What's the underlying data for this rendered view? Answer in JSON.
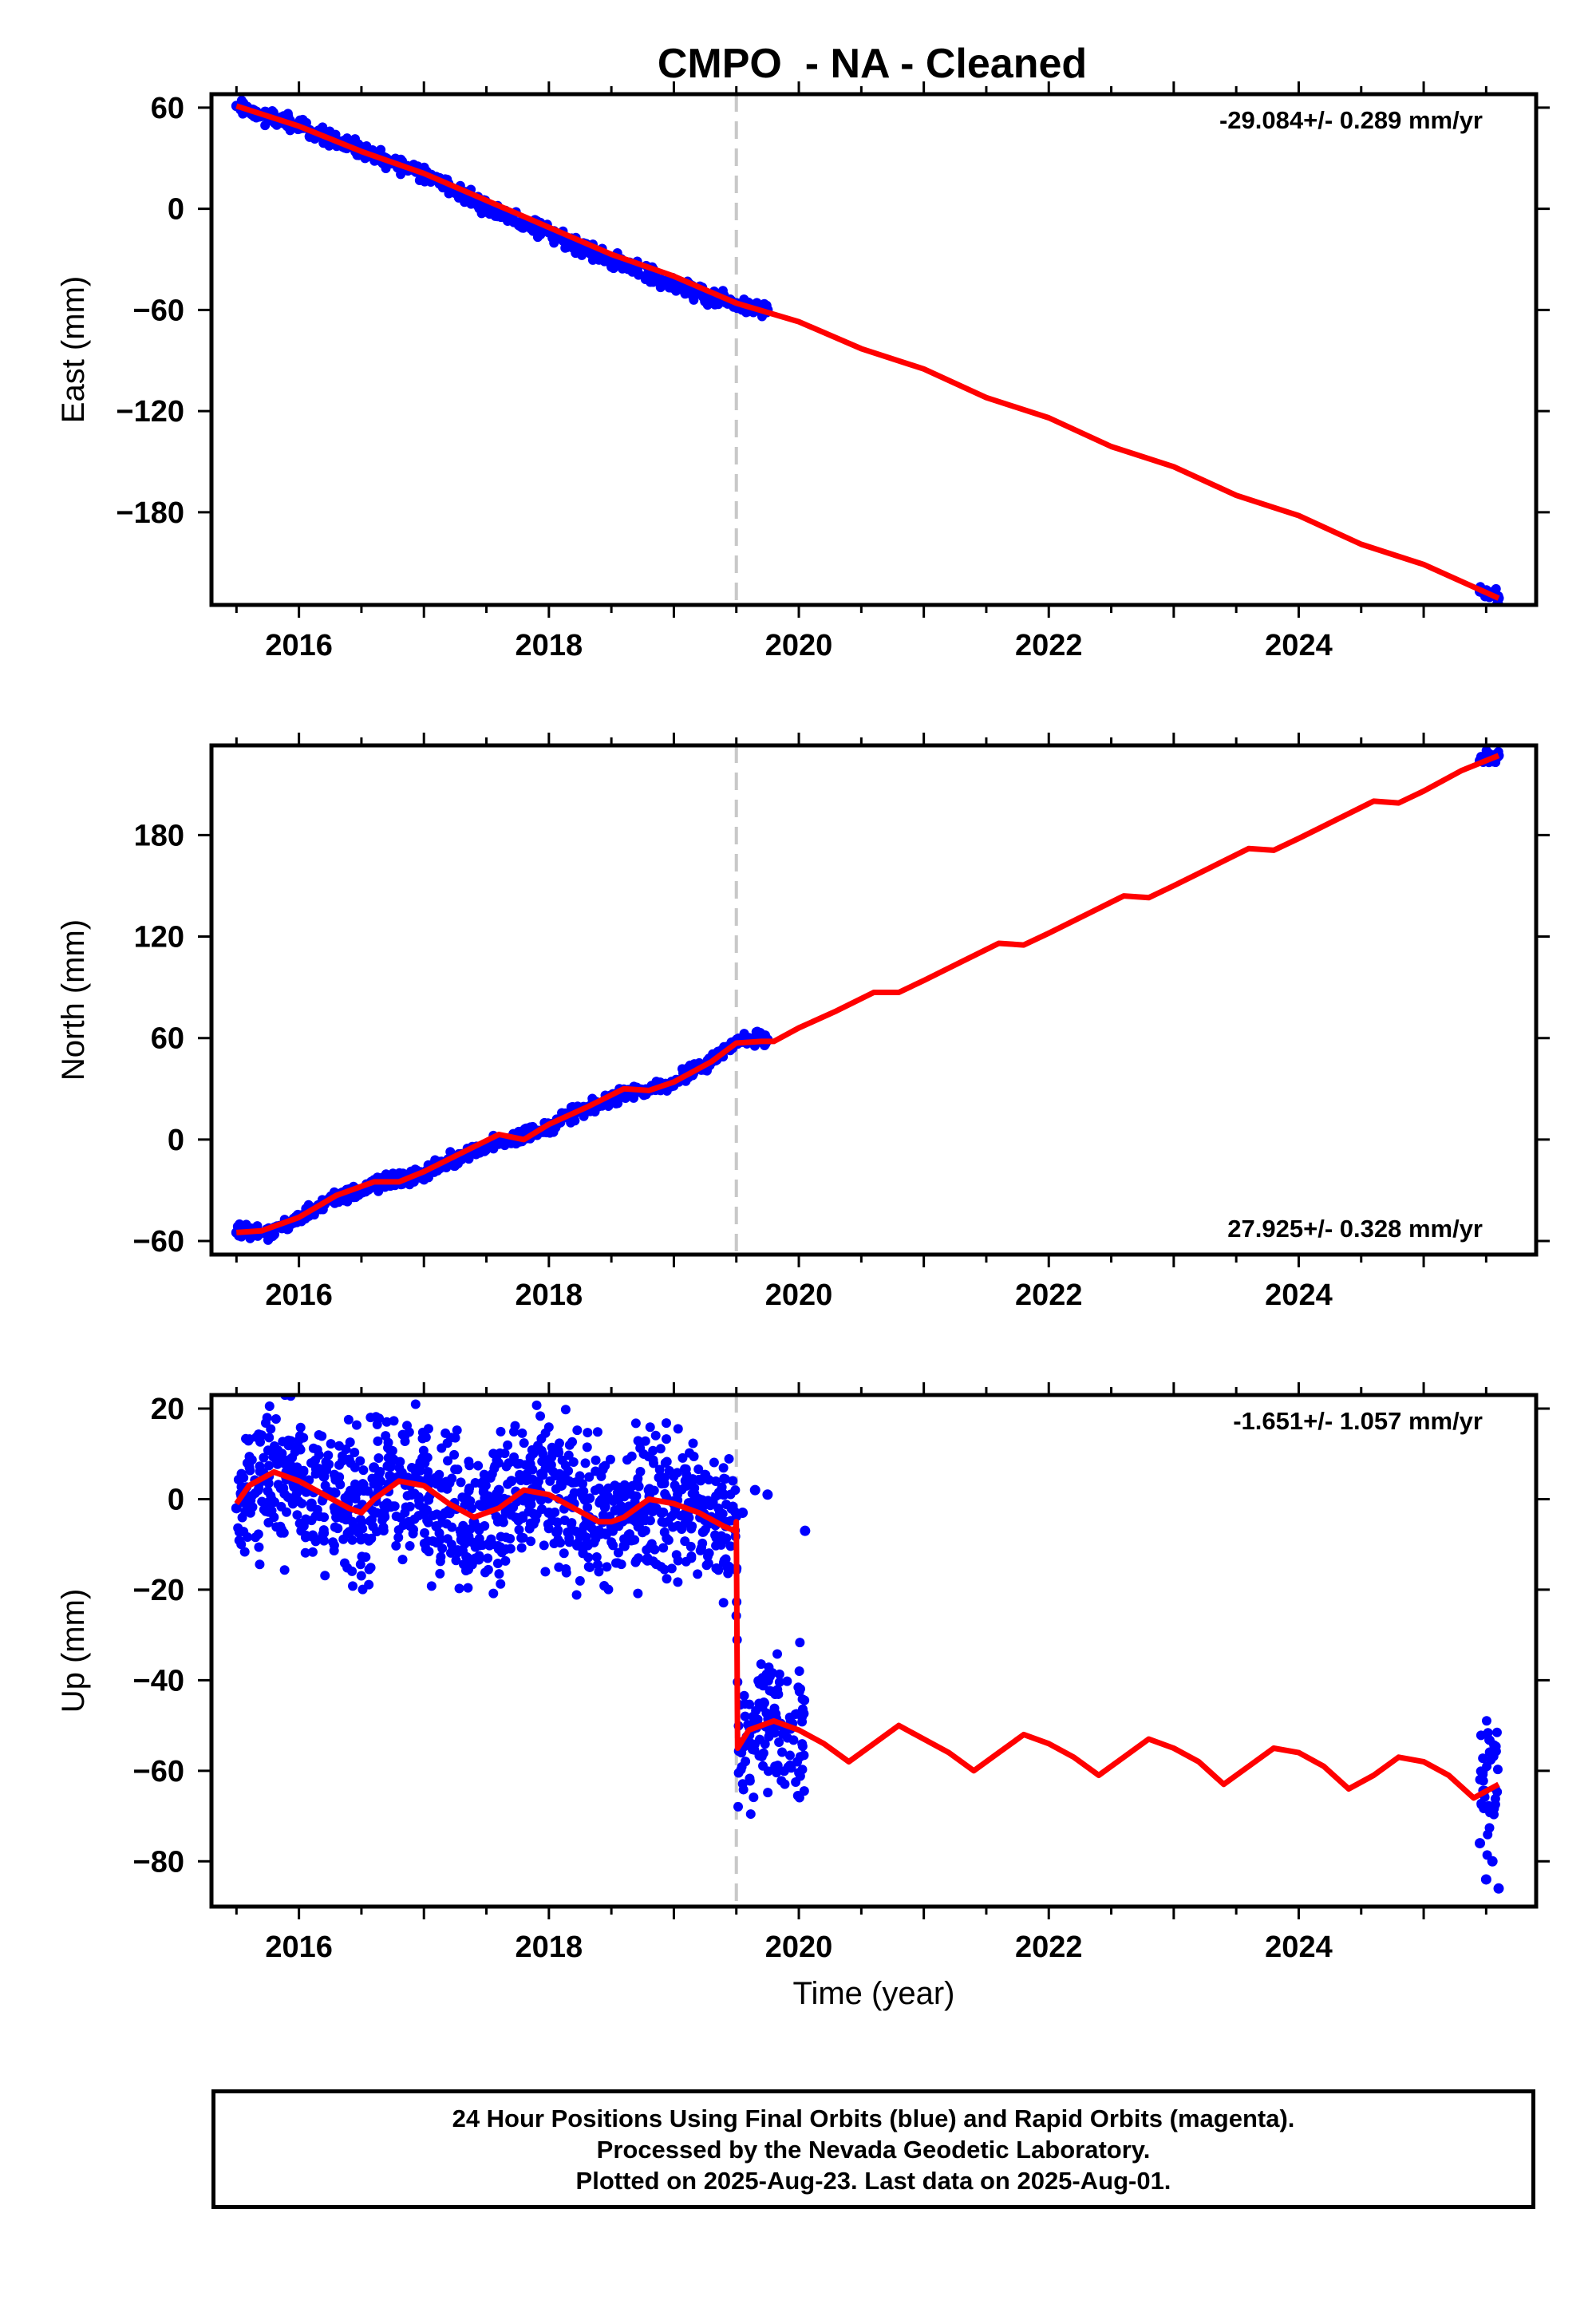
{
  "title": "CMPO  - NA - Cleaned",
  "colors": {
    "data": "#0000ff",
    "model": "#ff0000",
    "offset_line": "#c8c8c8",
    "frame": "#000000"
  },
  "footer": {
    "line1": "24 Hour Positions Using Final Orbits (blue) and Rapid Orbits (magenta).",
    "line2": "Processed by the Nevada Geodetic Laboratory.",
    "line3": "Plotted on 2025-Aug-23. Last data on 2025-Aug-01."
  },
  "chart_data": [
    {
      "type": "scatter",
      "component": "East",
      "ylabel": "East (mm)",
      "xlabel": "",
      "xlim": [
        2015.3,
        2025.9
      ],
      "ylim": [
        -235,
        68
      ],
      "xticks": [
        2016,
        2018,
        2020,
        2022,
        2024
      ],
      "yticks": [
        60,
        0,
        -60,
        -120,
        -180
      ],
      "grid": false,
      "rate_label": "-29.084+/- 0.289 mm/yr",
      "rate_position": "top-right",
      "offset_epoch": 2019.5,
      "series": [
        {
          "role": "daily positions",
          "x": [
            2015.5,
            2015.7,
            2016.0,
            2016.3,
            2016.6,
            2017.0,
            2017.3,
            2017.6,
            2018.0,
            2018.3,
            2018.6,
            2019.0,
            2019.3,
            2019.5,
            2019.6,
            2019.75,
            2025.45,
            2025.5,
            2025.6
          ],
          "y": [
            61,
            55,
            50,
            40,
            32,
            21,
            9,
            -2,
            -14,
            -24,
            -33,
            -45,
            -53,
            -56,
            -59,
            -60,
            -227,
            -229,
            -231
          ]
        },
        {
          "role": "model fit",
          "x": [
            2015.5,
            2016.0,
            2016.5,
            2017.0,
            2017.5,
            2018.0,
            2018.5,
            2019.0,
            2019.5,
            2020.0,
            2020.5,
            2021.0,
            2021.5,
            2022.0,
            2022.5,
            2023.0,
            2023.5,
            2024.0,
            2024.5,
            2025.0,
            2025.6
          ],
          "y": [
            61,
            49,
            34,
            21,
            5,
            -11,
            -27,
            -40,
            -56,
            -67,
            -83,
            -95,
            -112,
            -124,
            -141,
            -153,
            -170,
            -182,
            -199,
            -211,
            -231
          ]
        }
      ]
    },
    {
      "type": "scatter",
      "component": "North",
      "ylabel": "North (mm)",
      "xlabel": "",
      "xlim": [
        2015.3,
        2025.9
      ],
      "ylim": [
        -68,
        233
      ],
      "xticks": [
        2016,
        2018,
        2020,
        2022,
        2024
      ],
      "yticks": [
        180,
        120,
        60,
        0,
        -60
      ],
      "grid": false,
      "rate_label": "27.925+/- 0.328 mm/yr",
      "rate_position": "bottom-right",
      "offset_epoch": 2019.5,
      "series": [
        {
          "role": "daily positions",
          "x": [
            2015.5,
            2015.8,
            2016.0,
            2016.3,
            2016.6,
            2017.0,
            2017.4,
            2017.7,
            2018.0,
            2018.3,
            2018.6,
            2019.0,
            2019.3,
            2019.5,
            2019.6,
            2019.75,
            2025.45,
            2025.55,
            2025.6
          ],
          "y": [
            -55,
            -56,
            -46,
            -35,
            -27,
            -20,
            -7,
            0,
            8,
            18,
            27,
            34,
            47,
            57,
            60,
            59,
            224,
            226,
            227
          ]
        },
        {
          "role": "model fit",
          "x": [
            2015.5,
            2015.7,
            2016.0,
            2016.3,
            2016.6,
            2016.8,
            2017.0,
            2017.3,
            2017.6,
            2017.8,
            2018.0,
            2018.3,
            2018.6,
            2018.8,
            2019.0,
            2019.3,
            2019.5,
            2019.7,
            2019.8,
            2020.0,
            2020.3,
            2020.6,
            2020.8,
            2021.0,
            2021.3,
            2021.6,
            2021.8,
            2022.0,
            2022.3,
            2022.6,
            2022.8,
            2023.0,
            2023.3,
            2023.6,
            2023.8,
            2024.0,
            2024.3,
            2024.6,
            2024.8,
            2025.0,
            2025.3,
            2025.6
          ],
          "y": [
            -55,
            -54,
            -46,
            -33,
            -25,
            -25,
            -19,
            -8,
            3,
            0,
            9,
            19,
            30,
            29,
            34,
            46,
            57,
            58,
            58,
            66,
            76,
            87,
            87,
            94,
            105,
            116,
            115,
            122,
            133,
            144,
            143,
            150,
            161,
            172,
            171,
            178,
            189,
            200,
            199,
            206,
            218,
            227
          ]
        }
      ]
    },
    {
      "type": "scatter",
      "component": "Up",
      "ylabel": "Up (mm)",
      "xlabel": "Time (year)",
      "xlim": [
        2015.3,
        2025.9
      ],
      "ylim": [
        -90,
        23
      ],
      "xticks": [
        2016,
        2018,
        2020,
        2022,
        2024
      ],
      "yticks": [
        20,
        0,
        -20,
        -40,
        -60,
        -80
      ],
      "grid": false,
      "rate_label": "-1.651+/- 1.057 mm/yr",
      "rate_position": "top-right",
      "offset_epoch": 2019.5,
      "series": [
        {
          "role": "daily positions",
          "x": [
            2015.5,
            2015.6,
            2015.7,
            2015.8,
            2015.9,
            2016.0,
            2016.1,
            2016.2,
            2016.3,
            2016.4,
            2016.5,
            2016.6,
            2016.7,
            2016.8,
            2016.9,
            2017.0,
            2017.1,
            2017.2,
            2017.3,
            2017.4,
            2017.5,
            2017.6,
            2017.7,
            2017.8,
            2017.9,
            2018.0,
            2018.1,
            2018.2,
            2018.3,
            2018.4,
            2018.5,
            2018.6,
            2018.7,
            2018.8,
            2018.9,
            2019.0,
            2019.1,
            2019.2,
            2019.3,
            2019.4,
            2019.55,
            2019.65,
            2019.75,
            2020.05,
            2025.45,
            2025.5,
            2025.55,
            2025.6
          ],
          "y": [
            -2,
            8,
            4,
            10,
            6,
            2,
            -1,
            5,
            -4,
            1,
            3,
            7,
            2,
            5,
            1,
            -2,
            -6,
            -3,
            -9,
            -5,
            -1,
            2,
            4,
            0,
            1,
            -3,
            3,
            -1,
            -4,
            -7,
            -6,
            -2,
            -5,
            2,
            -3,
            -1,
            3,
            0,
            -4,
            1,
            -3,
            2,
            1,
            -7,
            -76,
            -84,
            -80,
            -86
          ]
        },
        {
          "role": "model fit",
          "x": [
            2015.5,
            2015.6,
            2015.8,
            2016.0,
            2016.2,
            2016.4,
            2016.5,
            2016.6,
            2016.8,
            2017.0,
            2017.2,
            2017.4,
            2017.6,
            2017.8,
            2018.0,
            2018.2,
            2018.4,
            2018.5,
            2018.6,
            2018.8,
            2019.0,
            2019.2,
            2019.4,
            2019.49,
            2019.5,
            2019.51,
            2019.6,
            2019.8,
            2020.0,
            2020.2,
            2020.4,
            2020.6,
            2020.8,
            2021.0,
            2021.2,
            2021.4,
            2021.6,
            2021.8,
            2022.0,
            2022.2,
            2022.4,
            2022.6,
            2022.8,
            2023.0,
            2023.2,
            2023.4,
            2023.6,
            2023.8,
            2024.0,
            2024.2,
            2024.4,
            2024.6,
            2024.8,
            2025.0,
            2025.2,
            2025.4,
            2025.6
          ],
          "y": [
            -1,
            3,
            6,
            4,
            1,
            -2,
            -3,
            0,
            4,
            3,
            -1,
            -4,
            -2,
            2,
            1,
            -2,
            -5,
            -5,
            -4,
            0,
            -1,
            -3,
            -6,
            -7,
            -5,
            -55,
            -51,
            -49,
            -51,
            -54,
            -58,
            -54,
            -50,
            -53,
            -56,
            -60,
            -56,
            -52,
            -54,
            -57,
            -61,
            -57,
            -53,
            -55,
            -58,
            -63,
            -59,
            -55,
            -56,
            -59,
            -64,
            -61,
            -57,
            -58,
            -61,
            -66,
            -63
          ]
        }
      ]
    }
  ]
}
